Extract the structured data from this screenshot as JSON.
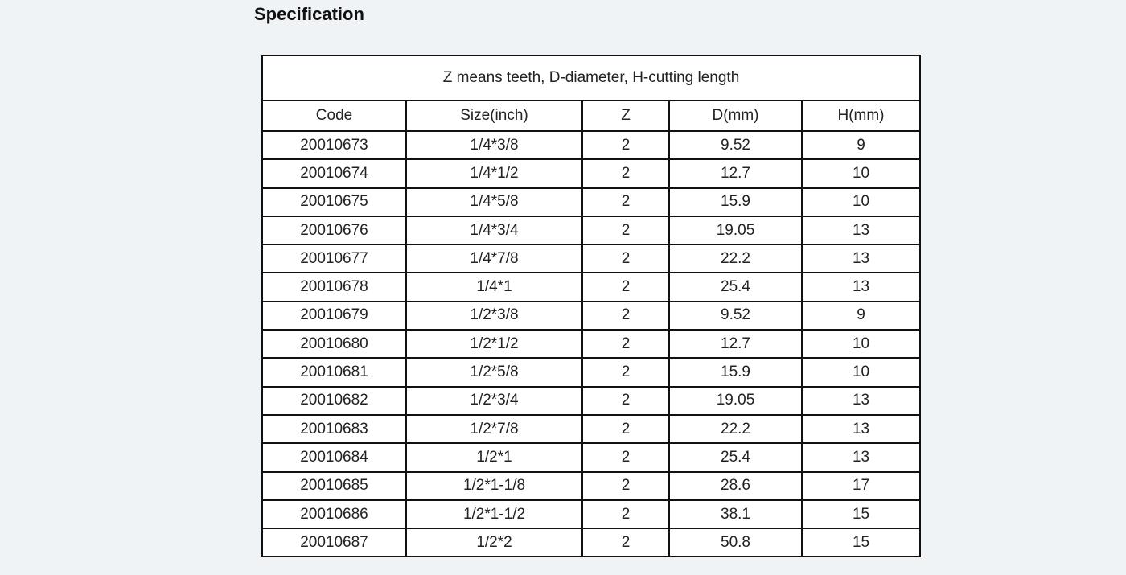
{
  "heading": "Specification",
  "table": {
    "caption": "Z  means teeth, D-diameter, H-cutting length",
    "columns": [
      "Code",
      "Size(inch)",
      "Z",
      "D(mm)",
      "H(mm)"
    ],
    "rows": [
      [
        "20010673",
        "1/4*3/8",
        "2",
        "9.52",
        "9"
      ],
      [
        "20010674",
        "1/4*1/2",
        "2",
        "12.7",
        "10"
      ],
      [
        "20010675",
        "1/4*5/8",
        "2",
        "15.9",
        "10"
      ],
      [
        "20010676",
        "1/4*3/4",
        "2",
        "19.05",
        "13"
      ],
      [
        "20010677",
        "1/4*7/8",
        "2",
        "22.2",
        "13"
      ],
      [
        "20010678",
        "1/4*1",
        "2",
        "25.4",
        "13"
      ],
      [
        "20010679",
        "1/2*3/8",
        "2",
        "9.52",
        "9"
      ],
      [
        "20010680",
        "1/2*1/2",
        "2",
        "12.7",
        "10"
      ],
      [
        "20010681",
        "1/2*5/8",
        "2",
        "15.9",
        "10"
      ],
      [
        "20010682",
        "1/2*3/4",
        "2",
        "19.05",
        "13"
      ],
      [
        "20010683",
        "1/2*7/8",
        "2",
        "22.2",
        "13"
      ],
      [
        "20010684",
        "1/2*1",
        "2",
        "25.4",
        "13"
      ],
      [
        "20010685",
        "1/2*1-1/8",
        "2",
        "28.6",
        "17"
      ],
      [
        "20010686",
        "1/2*1-1/2",
        "2",
        "38.1",
        "15"
      ],
      [
        "20010687",
        "1/2*2",
        "2",
        "50.8",
        "15"
      ]
    ]
  }
}
